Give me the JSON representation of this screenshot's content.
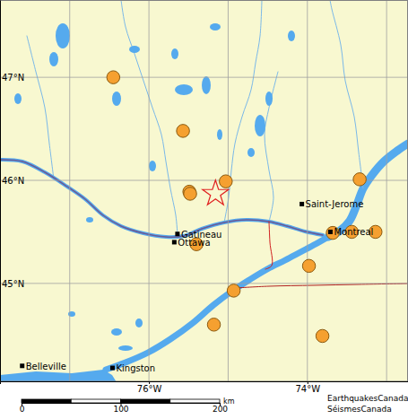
{
  "chart_data": {
    "type": "map",
    "xlim": [
      -77.88,
      -72.73
    ],
    "ylim": [
      44.05,
      47.75
    ],
    "xticks": [
      {
        "value": -76,
        "label": "76°W"
      },
      {
        "value": -74,
        "label": "74°W"
      }
    ],
    "yticks": [
      {
        "value": 45,
        "label": "45°N"
      },
      {
        "value": 46,
        "label": "46°N"
      },
      {
        "value": 47,
        "label": "47°N"
      }
    ],
    "grid": true,
    "meridians": [
      -77,
      -76,
      -75,
      -74,
      -73
    ],
    "parallels": [
      45,
      46,
      47
    ],
    "points": {
      "x": [
        -76.45,
        -75.57,
        -75.49,
        -75.48,
        -75.03,
        -75.4,
        -73.34,
        -73.68,
        -73.44,
        -73.14,
        -73.98,
        -74.93,
        -75.18,
        -73.81
      ],
      "y": [
        47.0,
        46.48,
        45.89,
        45.87,
        45.99,
        45.38,
        46.01,
        45.49,
        45.5,
        45.5,
        45.17,
        44.93,
        44.6,
        44.49
      ],
      "color": "#f5a030",
      "marker": "circle"
    },
    "epicenter": {
      "x": -75.16,
      "y": 45.87,
      "color": "#e02020",
      "marker": "star"
    },
    "cities": {
      "labels": [
        "Gatineau",
        "Ottawa",
        "Saint-Jerome",
        "Montreal",
        "Belleville",
        "Kingston"
      ],
      "x": [
        -75.64,
        -75.68,
        -74.07,
        -73.71,
        -77.6,
        -76.46
      ],
      "y": [
        45.48,
        45.4,
        45.77,
        45.5,
        44.2,
        44.18
      ]
    },
    "scale_bar": {
      "xlim": [
        0,
        200
      ],
      "ticks": [
        0,
        100,
        200
      ],
      "segments": [
        0,
        50,
        100,
        150,
        200
      ],
      "label": "km"
    },
    "credits": [
      "EarthquakesCanada",
      "SéismesCanada"
    ]
  }
}
